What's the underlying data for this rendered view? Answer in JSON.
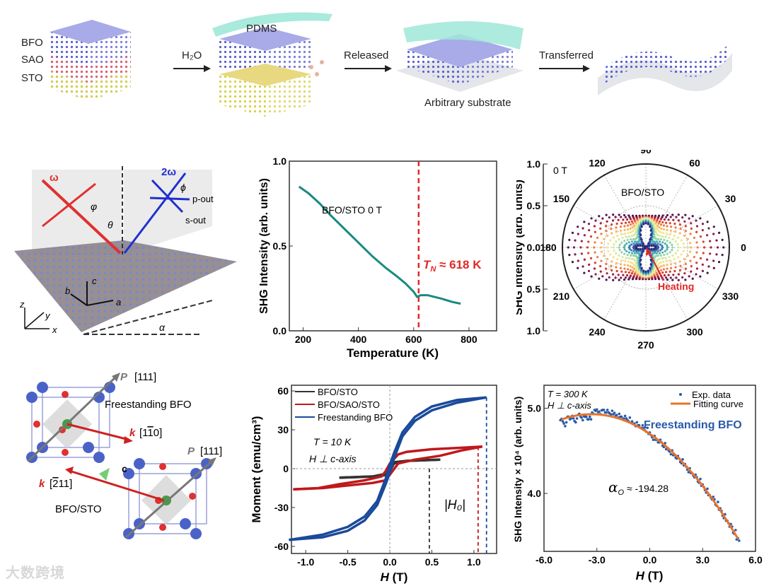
{
  "schematic": {
    "layers": [
      "BFO",
      "SAO",
      "STO"
    ],
    "steps": [
      "H₂O",
      "Released",
      "Transferred"
    ],
    "pdms": "PDMS",
    "substrate": "Arbitrary substrate",
    "colors": {
      "bfo": "#6a6fd6",
      "sao": "#e0607a",
      "sto": "#c8d050",
      "pdms": "#8fe0d0"
    }
  },
  "geometry_panel": {
    "omega": "ω",
    "two_omega": "2ω",
    "phi_in": "φ",
    "phi_out": "ϕ",
    "p_out": "p-out",
    "s_out": "s-out",
    "theta": "θ",
    "axes_crystal": [
      "a",
      "b",
      "c"
    ],
    "axes_lab": [
      "x",
      "y",
      "z"
    ],
    "alpha": "α"
  },
  "crystal_panel": {
    "p1": "P [111]",
    "k1": "k [1̅0]",
    "label1": "Freestanding BFO",
    "p2": "P [111]",
    "k2": "k [̄11]",
    "label2": "BFO/STO",
    "c": "c",
    "k1_text": "k",
    "k1_dir": "[1",
    "k1_bar": "1",
    "k1_end": "0]",
    "k2_text": "k",
    "k2_dir": "[",
    "k2_bar": "2",
    "k2_end": "11]",
    "p_text": "P",
    "p_dir": "[111]"
  },
  "watermark": "大数跨境",
  "chart_data": [
    {
      "type": "line",
      "title": "",
      "xlabel": "Temperature (K)",
      "ylabel": "SHG Intensity (arb. units)",
      "xlim": [
        150,
        900
      ],
      "ylim": [
        0,
        1.0
      ],
      "xticks": [
        200,
        400,
        600,
        800
      ],
      "xtick_labels": [
        "200",
        "400",
        "600",
        "800"
      ],
      "yticks": [
        0,
        0.5,
        1.0
      ],
      "ytick_labels": [
        "0.0",
        "0.5",
        "1.0"
      ],
      "annotation": "BFO/STO    0 T",
      "tn_label_prefix": "T",
      "tn_label_sub": "N",
      "tn_label_value": " ≈ 618 K",
      "tn": 618,
      "series": [
        {
          "name": "BFO/STO",
          "color": "#1a8a80",
          "x": [
            185,
            220,
            260,
            300,
            350,
            400,
            450,
            500,
            540,
            570,
            600,
            612,
            625,
            650,
            700,
            740,
            770
          ],
          "y": [
            0.85,
            0.81,
            0.75,
            0.68,
            0.6,
            0.52,
            0.44,
            0.37,
            0.32,
            0.28,
            0.23,
            0.2,
            0.21,
            0.21,
            0.19,
            0.17,
            0.16
          ]
        }
      ]
    },
    {
      "type": "polar",
      "ylabel": "SHG Intensity (arb. units)",
      "rticks": [
        "1.0",
        "0.5",
        "0.0",
        "0.5",
        "1.0"
      ],
      "angle_ticks": [
        0,
        30,
        60,
        90,
        120,
        150,
        180,
        210,
        240,
        270,
        300,
        330
      ],
      "angle_labels": [
        "0",
        "30",
        "60",
        "90",
        "120",
        "150",
        "180",
        "210",
        "240",
        "270",
        "300",
        "330"
      ],
      "field": "0 T",
      "sample": "BFO/STO",
      "arrow_label": "Heating",
      "curves": [
        {
          "r0": 0.93,
          "r90": 0.38,
          "d": 0.1,
          "color": "#4b1448"
        },
        {
          "r0": 0.86,
          "r90": 0.37,
          "d": 0.1,
          "color": "#7a1a52"
        },
        {
          "r0": 0.78,
          "r90": 0.37,
          "d": 0.11,
          "color": "#a8203e"
        },
        {
          "r0": 0.7,
          "r90": 0.36,
          "d": 0.12,
          "color": "#d8402c"
        },
        {
          "r0": 0.62,
          "r90": 0.36,
          "d": 0.13,
          "color": "#f07a40"
        },
        {
          "r0": 0.54,
          "r90": 0.35,
          "d": 0.14,
          "color": "#f8b860"
        },
        {
          "r0": 0.46,
          "r90": 0.35,
          "d": 0.15,
          "color": "#f6e290"
        },
        {
          "r0": 0.39,
          "r90": 0.34,
          "d": 0.16,
          "color": "#d6ec9c"
        },
        {
          "r0": 0.32,
          "r90": 0.33,
          "d": 0.17,
          "color": "#92d4a4"
        },
        {
          "r0": 0.26,
          "r90": 0.32,
          "d": 0.18,
          "color": "#50b0b0"
        },
        {
          "r0": 0.2,
          "r90": 0.31,
          "d": 0.19,
          "color": "#3280b8"
        },
        {
          "r0": 0.15,
          "r90": 0.3,
          "d": 0.2,
          "color": "#3650a0"
        },
        {
          "r0": 0.12,
          "r90": 0.29,
          "d": 0.21,
          "color": "#2a2a78"
        }
      ]
    },
    {
      "type": "line",
      "xlabel": "H (T)",
      "xlabel_var": "H",
      "xlabel_unit": " (T)",
      "ylabel": "Moment (emu/cm³)",
      "xlim": [
        -1.17,
        1.27
      ],
      "ylim": [
        -65.5,
        64.4
      ],
      "xticks": [
        -1.0,
        -0.5,
        0.0,
        0.5,
        1.0
      ],
      "xtick_labels": [
        "-1.0",
        "-0.5",
        "0.0",
        "0.5",
        "1.0"
      ],
      "yticks": [
        60,
        30,
        0,
        -30,
        -60
      ],
      "ytick_labels": [
        "60",
        "30",
        "0",
        "-30",
        "-60"
      ],
      "annotation_t": "T = 10 K",
      "annotation_h": "H ⊥ c-axis",
      "h0_label": "|H₀|",
      "series": [
        {
          "name": "BFO/STO",
          "color": "#333333",
          "h0": 0.47,
          "down": [
            [
              0.6,
              7
            ],
            [
              0.2,
              6
            ],
            [
              0.05,
              5
            ],
            [
              0,
              2
            ],
            [
              -0.05,
              -4
            ],
            [
              -0.2,
              -6
            ],
            [
              -0.6,
              -7
            ]
          ],
          "up": [
            [
              -0.6,
              -7
            ],
            [
              -0.2,
              -6
            ],
            [
              -0.05,
              -5
            ],
            [
              0,
              -2
            ],
            [
              0.05,
              4
            ],
            [
              0.2,
              6
            ],
            [
              0.6,
              7
            ]
          ]
        },
        {
          "name": "BFO/SAO/STO",
          "color": "#c0181c",
          "h0": 1.05,
          "down": [
            [
              1.1,
              17
            ],
            [
              0.8,
              16
            ],
            [
              0.5,
              15
            ],
            [
              0.2,
              13
            ],
            [
              0.1,
              11
            ],
            [
              0,
              4
            ],
            [
              -0.05,
              -2
            ],
            [
              -0.1,
              -6
            ],
            [
              -0.3,
              -9
            ],
            [
              -0.6,
              -12
            ],
            [
              -0.85,
              -15
            ],
            [
              -1.15,
              -16
            ]
          ],
          "up": [
            [
              -1.15,
              -16
            ],
            [
              -0.8,
              -15
            ],
            [
              -0.5,
              -13
            ],
            [
              -0.2,
              -11
            ],
            [
              -0.05,
              -9
            ],
            [
              0.02,
              -3
            ],
            [
              0.1,
              4
            ],
            [
              0.3,
              7
            ],
            [
              0.6,
              10
            ],
            [
              0.85,
              14
            ],
            [
              1.1,
              17
            ]
          ]
        },
        {
          "name": "Freestanding BFO",
          "color": "#1a4a9a",
          "h0": 1.15,
          "down": [
            [
              1.15,
              55
            ],
            [
              0.8,
              53
            ],
            [
              0.5,
              48
            ],
            [
              0.3,
              40
            ],
            [
              0.15,
              28
            ],
            [
              0.05,
              12
            ],
            [
              0,
              3
            ],
            [
              -0.05,
              -8
            ],
            [
              -0.15,
              -25
            ],
            [
              -0.3,
              -37
            ],
            [
              -0.5,
              -45
            ],
            [
              -0.8,
              -51
            ],
            [
              -1.2,
              -55
            ]
          ],
          "up": [
            [
              -1.2,
              -55
            ],
            [
              -0.8,
              -53
            ],
            [
              -0.5,
              -48
            ],
            [
              -0.3,
              -40
            ],
            [
              -0.15,
              -28
            ],
            [
              -0.05,
              -12
            ],
            [
              0,
              -3
            ],
            [
              0.05,
              8
            ],
            [
              0.15,
              25
            ],
            [
              0.3,
              37
            ],
            [
              0.5,
              45
            ],
            [
              0.8,
              51
            ],
            [
              1.15,
              55
            ]
          ]
        }
      ]
    },
    {
      "type": "scatter",
      "xlabel": "H (T)",
      "xlabel_var": "H",
      "xlabel_unit": " (T)",
      "ylabel": "SHG Intensity × 10⁴ (arb. units)",
      "xlim": [
        -6,
        6
      ],
      "ylim": [
        3.32,
        5.27
      ],
      "xticks": [
        -6,
        -3,
        0,
        3,
        6
      ],
      "xtick_labels": [
        "-6.0",
        "-3.0",
        "0.0",
        "3.0",
        "6.0"
      ],
      "yticks": [
        5.0,
        4.0
      ],
      "ytick_labels": [
        "5.0",
        "4.0"
      ],
      "annotation_t": "T = 300 K",
      "annotation_h": "H ⊥ c-axis",
      "sample": "Freestanding BFO",
      "alpha_label": "α",
      "alpha_sub": "O",
      "alpha_value": " ≈ -194.28",
      "legend": [
        "Exp. data",
        "Fitting curve"
      ],
      "series": [
        {
          "name": "Exp. data",
          "color": "#2a5aa8",
          "x": [
            -5,
            -4.8,
            -4.6,
            -4.4,
            -4.2,
            -4,
            -3.8,
            -3.6,
            -3.4,
            -3.2,
            -3,
            -2.8,
            -2.6,
            -2.4,
            -2.2,
            -2,
            -1.8,
            -1.6,
            -1.4,
            -1.2,
            -1,
            -0.8,
            -0.6,
            -0.4,
            -0.2,
            0,
            0.2,
            0.4,
            0.6,
            0.8,
            1,
            1.2,
            1.4,
            1.6,
            1.8,
            2,
            2.2,
            2.4,
            2.6,
            2.8,
            3,
            3.2,
            3.4,
            3.6,
            3.8,
            4,
            4.2,
            4.4,
            4.6,
            4.8,
            5
          ],
          "y": [
            4.86,
            4.82,
            4.9,
            4.88,
            4.85,
            4.92,
            4.89,
            4.9,
            4.87,
            4.95,
            4.97,
            4.96,
            4.98,
            4.95,
            4.94,
            4.93,
            4.92,
            4.9,
            4.88,
            4.86,
            4.83,
            4.82,
            4.8,
            4.77,
            4.74,
            4.7,
            4.66,
            4.63,
            4.6,
            4.56,
            4.52,
            4.49,
            4.45,
            4.41,
            4.37,
            4.33,
            4.28,
            4.24,
            4.19,
            4.14,
            4.09,
            4.04,
            3.98,
            3.93,
            3.87,
            3.81,
            3.74,
            3.68,
            3.61,
            3.54,
            3.46
          ]
        },
        {
          "name": "Fitting curve",
          "color": "#e8742a",
          "x": [
            -5,
            -4,
            -3.3,
            -3,
            -2,
            -1,
            0,
            1,
            2,
            3,
            4,
            5
          ],
          "y": [
            4.87,
            4.92,
            4.93,
            4.93,
            4.89,
            4.8,
            4.7,
            4.54,
            4.35,
            4.09,
            3.82,
            3.47
          ]
        }
      ]
    }
  ]
}
